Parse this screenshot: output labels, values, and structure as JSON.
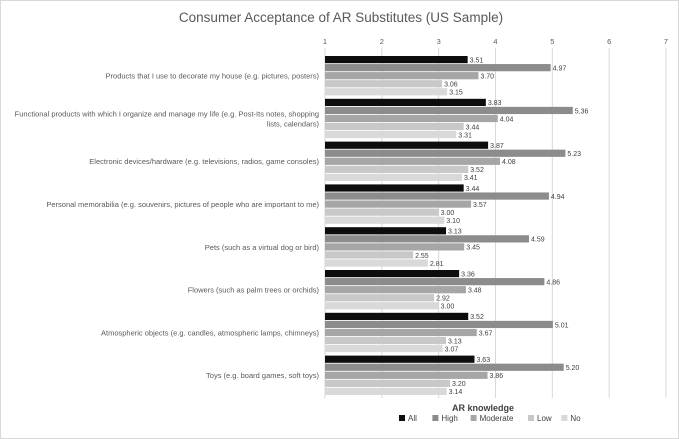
{
  "chart_data": {
    "type": "bar",
    "orientation": "horizontal",
    "title": "Consumer Acceptance of AR Substitutes (US Sample)",
    "xlim": [
      1,
      7
    ],
    "xticks": [
      1,
      2,
      3,
      4,
      5,
      6,
      7
    ],
    "grid": true,
    "legend": {
      "title": "AR knowledge",
      "placement": "bottom-right"
    },
    "categories": [
      "Products that I use to decorate my house (e.g. pictures, posters)",
      "Functional products with which I organize and manage my life (e.g. Post-Its notes, shopping lists, calendars)",
      "Electronic devices/hardware (e.g. televisions, radios, game consoles)",
      "Personal memorabilia (e.g. souvenirs, pictures of people who are important to me)",
      "Pets (such as a virtual dog or bird)",
      "Flowers (such as palm trees or orchids)",
      "Atmospheric objects (e.g. candles, atmospheric lamps, chimneys)",
      "Toys (e.g. board games, soft toys)"
    ],
    "category_lines": [
      [
        "Products that I use to decorate my house (e.g. pictures, posters)"
      ],
      [
        "Functional products with which I organize and manage my life (e.g. Post-Its notes, shopping",
        "lists, calendars)"
      ],
      [
        "Electronic devices/hardware (e.g. televisions, radios, game consoles)"
      ],
      [
        "Personal memorabilia (e.g. souvenirs, pictures of people who are important to me)"
      ],
      [
        "Pets (such as a virtual dog or bird)"
      ],
      [
        "Flowers (such as palm trees or orchids)"
      ],
      [
        "Atmospheric objects (e.g. candles, atmospheric lamps, chimneys)"
      ],
      [
        "Toys (e.g. board games, soft toys)"
      ]
    ],
    "series": [
      {
        "name": "All",
        "color": "#0d0d0d",
        "values": [
          3.51,
          3.83,
          3.87,
          3.44,
          3.13,
          3.36,
          3.52,
          3.63
        ]
      },
      {
        "name": "High",
        "color": "#8c8c8c",
        "values": [
          4.97,
          5.36,
          5.23,
          4.94,
          4.59,
          4.86,
          5.01,
          5.2
        ]
      },
      {
        "name": "Moderate",
        "color": "#a6a6a6",
        "values": [
          3.7,
          4.04,
          4.08,
          3.57,
          3.45,
          3.48,
          3.67,
          3.86
        ]
      },
      {
        "name": "Low",
        "color": "#c8c8c8",
        "values": [
          3.06,
          3.44,
          3.52,
          3.0,
          2.55,
          2.92,
          3.13,
          3.2
        ]
      },
      {
        "name": "No",
        "color": "#d9d9d9",
        "values": [
          3.15,
          3.31,
          3.41,
          3.1,
          2.81,
          3.0,
          3.07,
          3.14
        ]
      }
    ],
    "value_labels": [
      [
        "3.51",
        "3.83",
        "3.87",
        "3.44",
        "3.13",
        "3.36",
        "3.52",
        "3.63"
      ],
      [
        "4.97",
        "5.36",
        "5.23",
        "4.94",
        "4.59",
        "4.86",
        "5.01",
        "5.20"
      ],
      [
        "3.70",
        "4.04",
        "4.08",
        "3.57",
        "3.45",
        "3.48",
        "3.67",
        "3.86"
      ],
      [
        "3.06",
        "3.44",
        "3.52",
        "3.00",
        "2.55",
        "2.92",
        "3.13",
        "3.20"
      ],
      [
        "3.15",
        "3.31",
        "3.41",
        "3.10",
        "2.81",
        "3.00",
        "3.07",
        "3.14"
      ]
    ]
  }
}
